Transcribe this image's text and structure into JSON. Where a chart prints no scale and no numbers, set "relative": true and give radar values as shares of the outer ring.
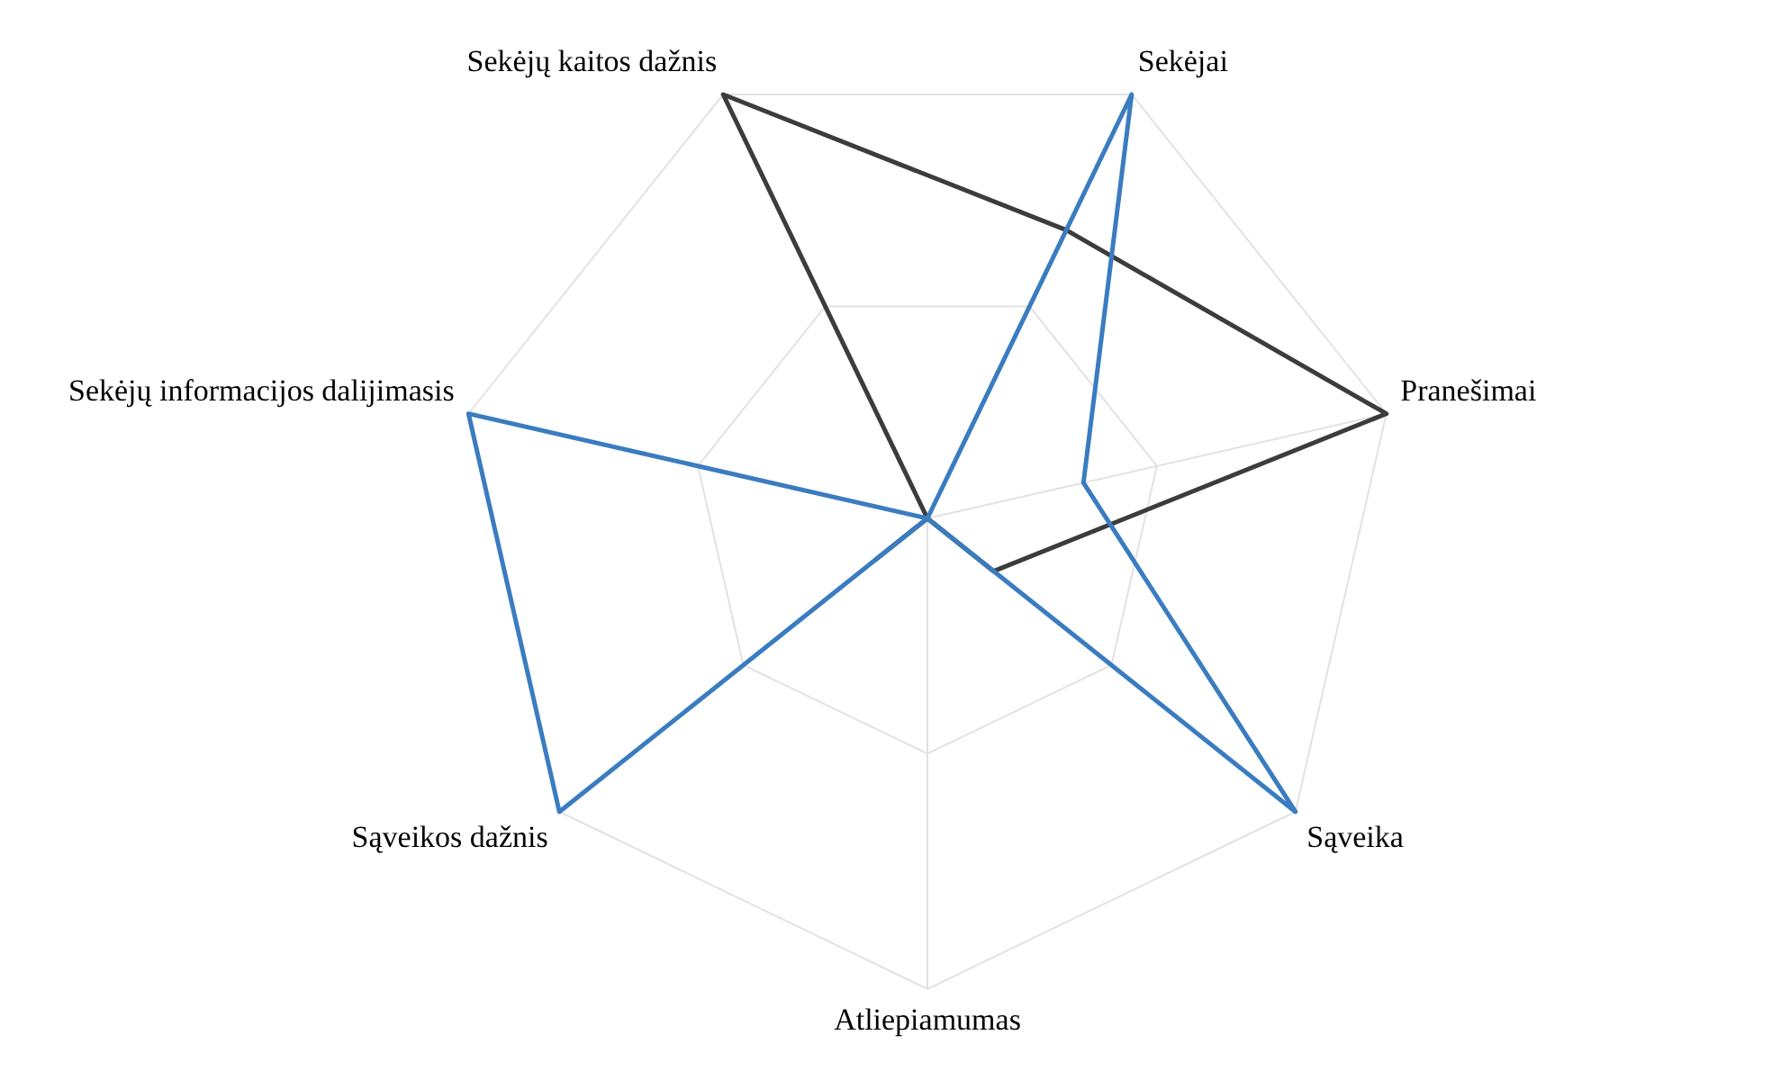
{
  "chart_data": {
    "type": "radar",
    "relative": true,
    "grid": true,
    "legend": false,
    "categories": [
      "Sekėjai",
      "Pranešimai",
      "Sąveika",
      "Atliepiamumas",
      "Sąveikos dažnis",
      "Sekėjų informacijos dalijimasis",
      "Sekėjų kaitos dažnis"
    ],
    "series": [
      {
        "color": "#3a7cc0",
        "values": [
          1,
          0.34,
          1,
          0,
          1,
          1,
          0
        ]
      },
      {
        "color": "#3c3c3c",
        "values": [
          0.68,
          1,
          0.18,
          0,
          0.14,
          0,
          1
        ]
      }
    ]
  }
}
